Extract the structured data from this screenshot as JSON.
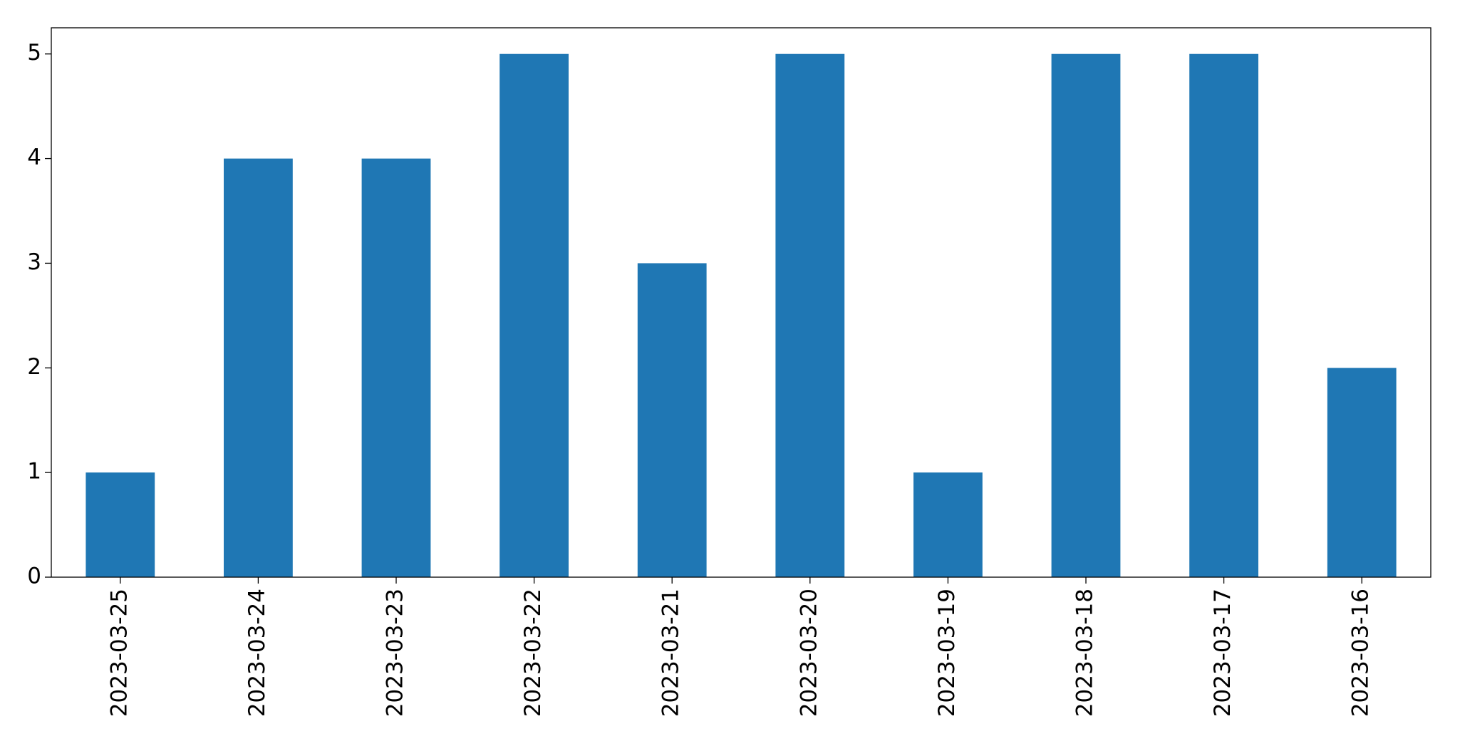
{
  "chart_data": {
    "type": "bar",
    "categories": [
      "2023-03-25",
      "2023-03-24",
      "2023-03-23",
      "2023-03-22",
      "2023-03-21",
      "2023-03-20",
      "2023-03-19",
      "2023-03-18",
      "2023-03-17",
      "2023-03-16"
    ],
    "values": [
      1,
      4,
      4,
      5,
      3,
      5,
      1,
      5,
      5,
      2
    ],
    "color": "#1f77b4",
    "ylim": [
      0,
      5.25
    ],
    "yticks": [
      0,
      1,
      2,
      3,
      4,
      5
    ],
    "grid": false
  }
}
